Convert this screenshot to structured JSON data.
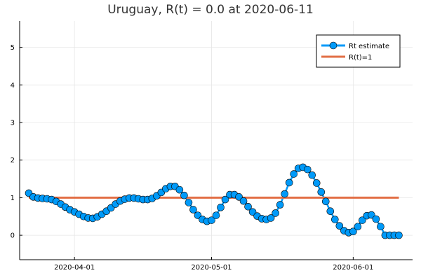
{
  "chart_data": {
    "type": "line",
    "title": "Uruguay, R(t) = 0.0 at 2020-06-11",
    "xlabel": "",
    "ylabel": "",
    "xlim": [
      "2020-03-20",
      "2020-06-14"
    ],
    "ylim": [
      -0.65,
      5.7
    ],
    "x_ticks": [
      "2020-04-01",
      "2020-05-01",
      "2020-06-01"
    ],
    "y_ticks": [
      0,
      1,
      2,
      3,
      4,
      5
    ],
    "grid": true,
    "legend_position": "top-right",
    "start_date": "2020-03-22",
    "series": [
      {
        "name": "Rt estimate",
        "color": "#009af9",
        "marker": "circle",
        "values": [
          1.12,
          1.02,
          0.99,
          0.98,
          0.97,
          0.95,
          0.9,
          0.83,
          0.75,
          0.68,
          0.62,
          0.56,
          0.5,
          0.46,
          0.45,
          0.49,
          0.56,
          0.64,
          0.73,
          0.83,
          0.91,
          0.96,
          0.99,
          0.99,
          0.97,
          0.95,
          0.95,
          0.98,
          1.05,
          1.14,
          1.24,
          1.3,
          1.3,
          1.21,
          1.06,
          0.87,
          0.68,
          0.53,
          0.42,
          0.37,
          0.4,
          0.53,
          0.74,
          0.95,
          1.08,
          1.08,
          1.02,
          0.91,
          0.76,
          0.62,
          0.51,
          0.44,
          0.42,
          0.46,
          0.59,
          0.81,
          1.1,
          1.4,
          1.63,
          1.78,
          1.81,
          1.75,
          1.6,
          1.39,
          1.15,
          0.9,
          0.64,
          0.42,
          0.25,
          0.12,
          0.07,
          0.1,
          0.23,
          0.4,
          0.52,
          0.54,
          0.43,
          0.23,
          0.0,
          0.0,
          0.0,
          0.0
        ]
      },
      {
        "name": "R(t)=1",
        "color": "#e26f46",
        "values": [
          1.0
        ]
      }
    ]
  }
}
